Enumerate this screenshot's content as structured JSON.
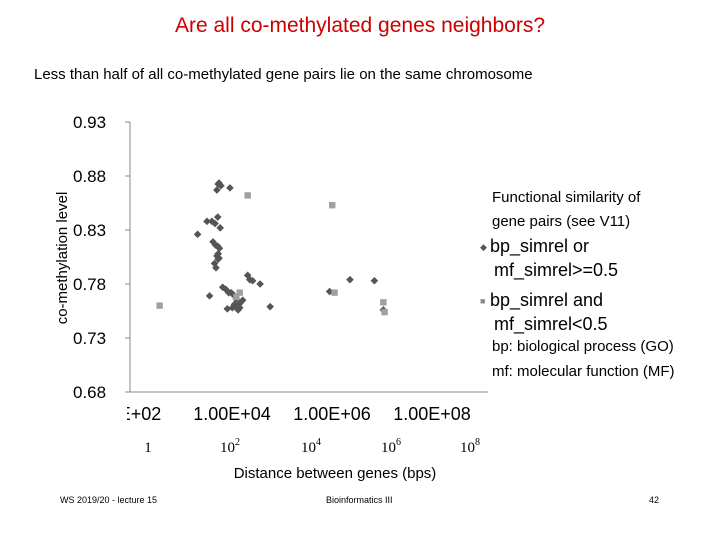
{
  "title": "Are all co-methylated genes neighbors?",
  "subtitle": "Less than half of all co-methylated gene pairs lie on the same chromosome",
  "legend": {
    "title_line1": "Functional similarity of",
    "title_line2": "gene pairs (see V11)",
    "items": [
      {
        "line1": "bp_simrel or",
        "line2": "mf_simrel>=0.5",
        "marker": "diamond"
      },
      {
        "line1": "bp_simrel and",
        "line2": "mf_simrel<0.5",
        "marker": "square"
      }
    ],
    "note1": "bp: biological process (GO)",
    "note2": "mf: molecular function (MF)"
  },
  "footer": {
    "left": "WS 2019/20 - lecture 15",
    "center": "Bioinformatics III",
    "right": "42"
  },
  "chart_data": {
    "type": "scatter",
    "xlabel": "Distance between genes (bps)",
    "ylabel": "co-methylation level",
    "xscale": "log",
    "xlim": [
      100,
      1000000000
    ],
    "ylim": [
      0.68,
      0.93
    ],
    "yticks": [
      "0.93",
      "0.88",
      "0.83",
      "0.78",
      "0.73",
      "0.68"
    ],
    "xticks_sci": [
      "E+02",
      "1.00E+04",
      "1.00E+06",
      "1.00E+08"
    ],
    "xticks_pow": [
      {
        "base": "1",
        "exp": ""
      },
      {
        "base": "10",
        "exp": "2"
      },
      {
        "base": "10",
        "exp": "4"
      },
      {
        "base": "10",
        "exp": "6"
      },
      {
        "base": "10",
        "exp": "8"
      }
    ],
    "grid": false,
    "legend_position": "right",
    "colors": {
      "series1": "#555555",
      "series2": "#a0a0a0"
    },
    "series": [
      {
        "name": "bp_simrel or mf_simrel>=0.5",
        "marker": "diamond",
        "points": [
          [
            5300,
            0.8725
          ],
          [
            5500,
            0.8735
          ],
          [
            6000,
            0.871
          ],
          [
            5000,
            0.867
          ],
          [
            9000,
            0.869
          ],
          [
            2100,
            0.826
          ],
          [
            3200,
            0.838
          ],
          [
            4000,
            0.838
          ],
          [
            4600,
            0.836
          ],
          [
            5200,
            0.842
          ],
          [
            5800,
            0.832
          ],
          [
            4200,
            0.819
          ],
          [
            4700,
            0.816
          ],
          [
            5200,
            0.815
          ],
          [
            5600,
            0.813
          ],
          [
            5000,
            0.806
          ],
          [
            5300,
            0.808
          ],
          [
            5500,
            0.804
          ],
          [
            4500,
            0.799
          ],
          [
            4800,
            0.795
          ],
          [
            5300,
            0.803
          ],
          [
            6500,
            0.777
          ],
          [
            7500,
            0.775
          ],
          [
            8500,
            0.772
          ],
          [
            9500,
            0.772
          ],
          [
            10500,
            0.77
          ],
          [
            12000,
            0.766
          ],
          [
            14000,
            0.762
          ],
          [
            16000,
            0.765
          ],
          [
            8000,
            0.757
          ],
          [
            10000,
            0.758
          ],
          [
            11000,
            0.761
          ],
          [
            12000,
            0.758
          ],
          [
            13000,
            0.756
          ],
          [
            14000,
            0.758
          ],
          [
            20000,
            0.788
          ],
          [
            22000,
            0.784
          ],
          [
            25000,
            0.783
          ],
          [
            35000,
            0.78
          ],
          [
            55000,
            0.759
          ],
          [
            3600,
            0.769
          ],
          [
            800000,
            0.773
          ],
          [
            2000000,
            0.784
          ],
          [
            6000000,
            0.783
          ],
          [
            9000000,
            0.756
          ]
        ]
      },
      {
        "name": "bp_simrel and mf_simrel<0.5",
        "marker": "square",
        "points": [
          [
            380,
            0.76
          ],
          [
            20000,
            0.862
          ],
          [
            14000,
            0.772
          ],
          [
            12000,
            0.768
          ],
          [
            900000,
            0.853
          ],
          [
            1000000,
            0.772
          ],
          [
            9000000,
            0.763
          ],
          [
            9500000,
            0.754
          ]
        ]
      }
    ]
  }
}
